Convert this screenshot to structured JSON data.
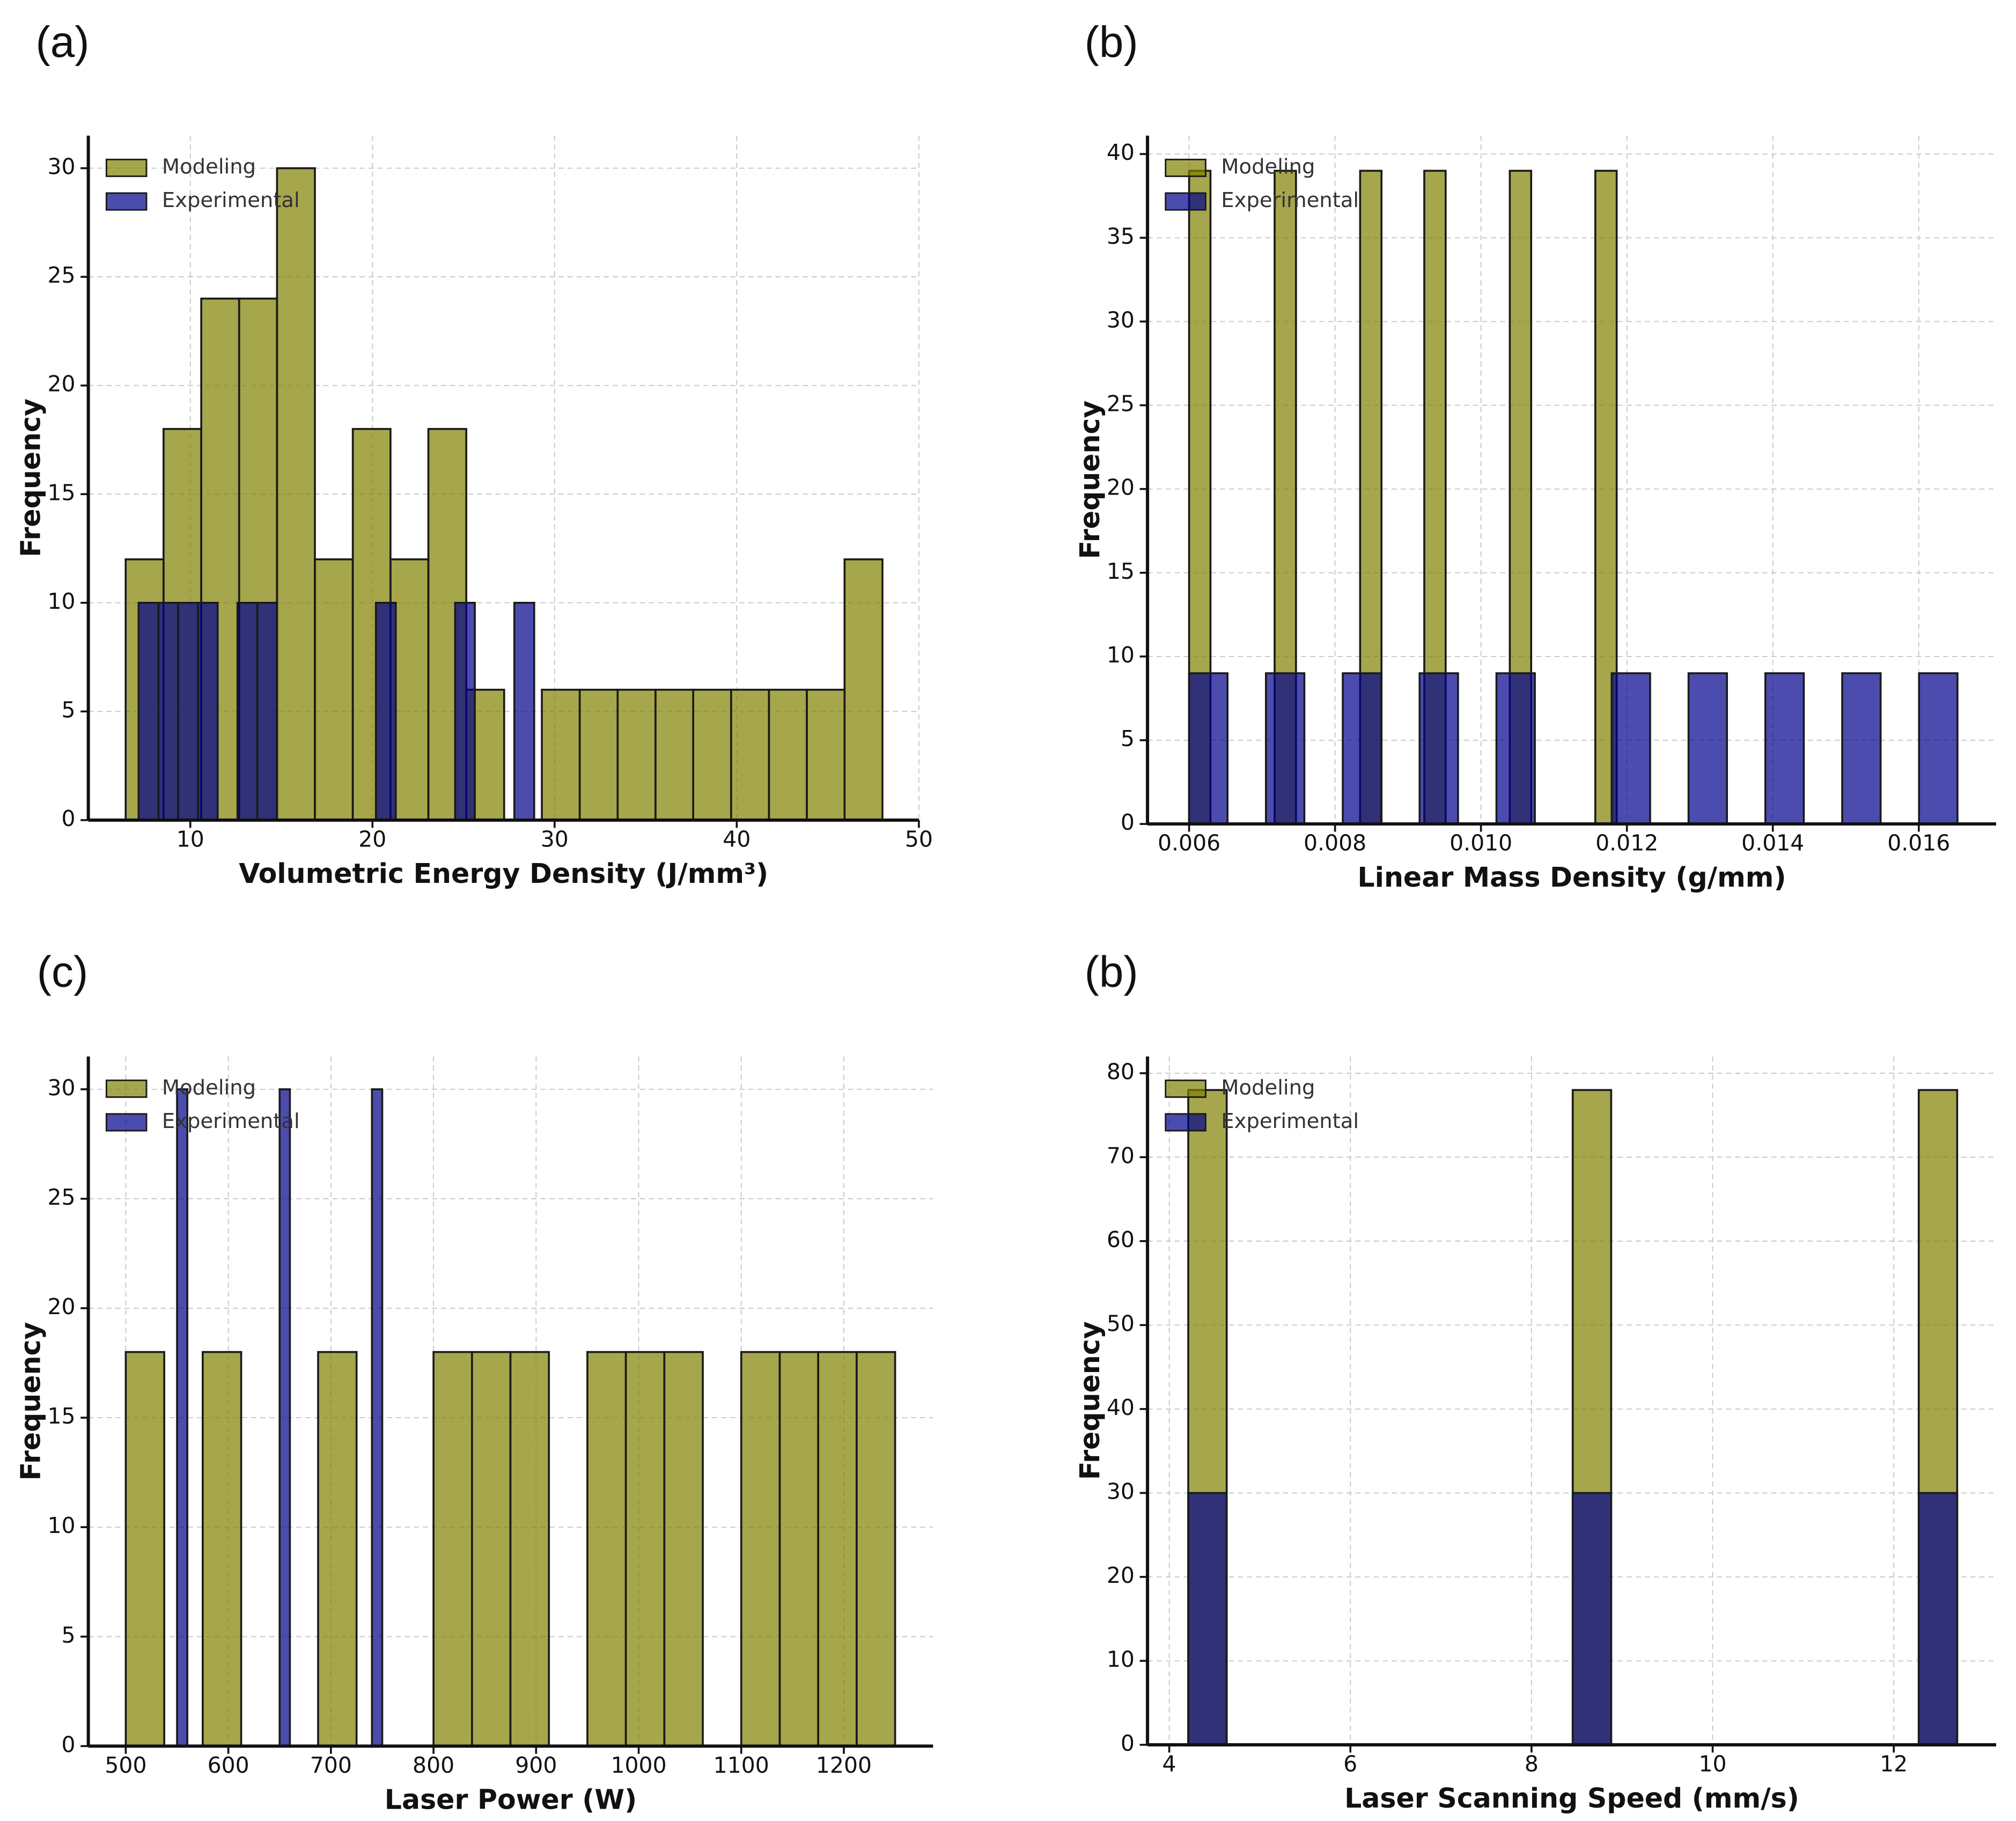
{
  "chart_data": [
    {
      "type": "histogram",
      "panel_label": "(a)",
      "xlabel": "Volumetric Energy Density (J/mm³)",
      "ylabel": "Frequency",
      "xlim": [
        4.4,
        50
      ],
      "ylim": [
        0,
        31.5
      ],
      "xticks": [
        10,
        20,
        30,
        40,
        50
      ],
      "yticks": [
        0,
        5,
        10,
        15,
        20,
        25,
        30
      ],
      "grid": true,
      "legend": "upper left",
      "series": [
        {
          "name": "Modeling",
          "color": "#808000",
          "opacity": 0.7,
          "bins": [
            6.45,
            8.53,
            10.6,
            12.68,
            14.76,
            16.84,
            18.92,
            20.99,
            23.07,
            25.15,
            27.23,
            29.3,
            31.38,
            33.46,
            35.54,
            37.61,
            39.69,
            41.77,
            43.85,
            45.92,
            48.0
          ],
          "values": [
            12,
            18,
            24,
            24,
            30,
            12,
            18,
            12,
            18,
            6,
            0,
            6,
            6,
            6,
            6,
            6,
            6,
            6,
            6,
            12
          ]
        },
        {
          "name": "Experimental",
          "color": "#00008b",
          "opacity": 0.7,
          "bins": [
            7.16,
            8.25,
            9.33,
            10.42,
            11.5,
            12.59,
            13.68,
            14.76,
            15.85,
            16.93,
            18.02,
            19.11,
            20.19,
            21.28,
            22.36,
            23.45,
            24.54,
            25.62,
            26.71,
            27.79,
            28.88
          ],
          "values": [
            10,
            10,
            10,
            10,
            0,
            10,
            10,
            0,
            0,
            0,
            0,
            0,
            10,
            0,
            0,
            0,
            10,
            0,
            0,
            10
          ]
        }
      ]
    },
    {
      "type": "histogram",
      "panel_label": "(b)",
      "xlabel": "Linear Mass Density (g/mm)",
      "ylabel": "Frequency",
      "xlim": [
        0.00543,
        0.01706
      ],
      "ylim": [
        0,
        41.1
      ],
      "xticks": [
        0.006,
        0.008,
        {
          "value": 0.01,
          "label": "0.010"
        },
        0.012,
        0.014,
        0.016
      ],
      "yticks": [
        0,
        5,
        10,
        15,
        20,
        25,
        30,
        35,
        40
      ],
      "grid": true,
      "legend": "upper left",
      "series": [
        {
          "name": "Modeling",
          "color": "#808000",
          "opacity": 0.7,
          "bins": [
            0.006,
            0.006293,
            0.006586,
            0.006879,
            0.007172,
            0.007465,
            0.007758,
            0.008051,
            0.008344,
            0.008637,
            0.00893,
            0.009223,
            0.009516,
            0.009809,
            0.010102,
            0.010395,
            0.010688,
            0.010981,
            0.011274,
            0.011567,
            0.01186
          ],
          "values": [
            39,
            0,
            0,
            0,
            39,
            0,
            0,
            0,
            39,
            0,
            0,
            39,
            0,
            0,
            0,
            39,
            0,
            0,
            0,
            39
          ]
        },
        {
          "name": "Experimental",
          "color": "#00008b",
          "opacity": 0.7,
          "bins": [
            0.006,
            0.0065265,
            0.007053,
            0.0075795,
            0.008106,
            0.0086325,
            0.009159,
            0.0096855,
            0.010212,
            0.0107385,
            0.011265,
            0.0117915,
            0.012318,
            0.0128445,
            0.013371,
            0.0138975,
            0.014424,
            0.0149505,
            0.015477,
            0.0160035,
            0.01653
          ],
          "values": [
            9,
            0,
            9,
            0,
            9,
            0,
            9,
            0,
            9,
            0,
            0,
            9,
            0,
            9,
            0,
            9,
            0,
            9,
            0,
            9
          ]
        }
      ]
    },
    {
      "type": "histogram",
      "panel_label": "(c)",
      "xlabel": "Laser Power (W)",
      "ylabel": "Frequency",
      "xlim": [
        463.5,
        1287
      ],
      "ylim": [
        0,
        31.5
      ],
      "xticks": [
        500,
        600,
        700,
        800,
        900,
        1000,
        1100,
        1200
      ],
      "yticks": [
        0,
        5,
        10,
        15,
        20,
        25,
        30
      ],
      "grid": true,
      "legend": "upper left",
      "series": [
        {
          "name": "Modeling",
          "color": "#808000",
          "opacity": 0.7,
          "bins": [
            500,
            537.5,
            575,
            612.5,
            650,
            687.5,
            725,
            762.5,
            800,
            837.5,
            875,
            912.5,
            950,
            987.5,
            1025,
            1062.5,
            1100,
            1137.5,
            1175,
            1212.5,
            1250
          ],
          "values": [
            18,
            0,
            18,
            0,
            0,
            18,
            0,
            0,
            18,
            18,
            18,
            0,
            18,
            18,
            18,
            0,
            18,
            18,
            18,
            18
          ]
        },
        {
          "name": "Experimental",
          "color": "#00008b",
          "opacity": 0.7,
          "bins": [
            550,
            560,
            570,
            580,
            590,
            600,
            610,
            620,
            630,
            640,
            650,
            660,
            670,
            680,
            690,
            700,
            710,
            720,
            730,
            740,
            750
          ],
          "values": [
            30,
            0,
            0,
            0,
            0,
            0,
            0,
            0,
            0,
            0,
            30,
            0,
            0,
            0,
            0,
            0,
            0,
            0,
            0,
            30
          ]
        }
      ]
    },
    {
      "type": "histogram",
      "panel_label": "(b)",
      "xlabel": "Laser Scanning Speed (mm/s)",
      "ylabel": "Frequency",
      "xlim": [
        3.76,
        13.13
      ],
      "ylim": [
        0,
        82
      ],
      "xticks": [
        4,
        6,
        8,
        10,
        12
      ],
      "yticks": [
        0,
        10,
        20,
        30,
        40,
        50,
        60,
        70,
        80
      ],
      "grid": true,
      "legend": "upper left",
      "series": [
        {
          "name": "Modeling",
          "color": "#808000",
          "opacity": 0.7,
          "bins": [
            4.21,
            4.6345,
            5.059,
            5.4835,
            5.908,
            6.3325,
            6.757,
            7.1815,
            7.606,
            8.0305,
            8.455,
            8.8795,
            9.304,
            9.7285,
            10.153,
            10.5775,
            11.002,
            11.4265,
            11.851,
            12.2755,
            12.7
          ],
          "values": [
            78,
            0,
            0,
            0,
            0,
            0,
            0,
            0,
            0,
            0,
            78,
            0,
            0,
            0,
            0,
            0,
            0,
            0,
            0,
            78
          ]
        },
        {
          "name": "Experimental",
          "color": "#00008b",
          "opacity": 0.7,
          "bins": [
            4.21,
            4.6345,
            5.059,
            5.4835,
            5.908,
            6.3325,
            6.757,
            7.1815,
            7.606,
            8.0305,
            8.455,
            8.8795,
            9.304,
            9.7285,
            10.153,
            10.5775,
            11.002,
            11.4265,
            11.851,
            12.2755,
            12.7
          ],
          "values": [
            30,
            0,
            0,
            0,
            0,
            0,
            0,
            0,
            0,
            0,
            30,
            0,
            0,
            0,
            0,
            0,
            0,
            0,
            0,
            30
          ]
        }
      ]
    }
  ]
}
